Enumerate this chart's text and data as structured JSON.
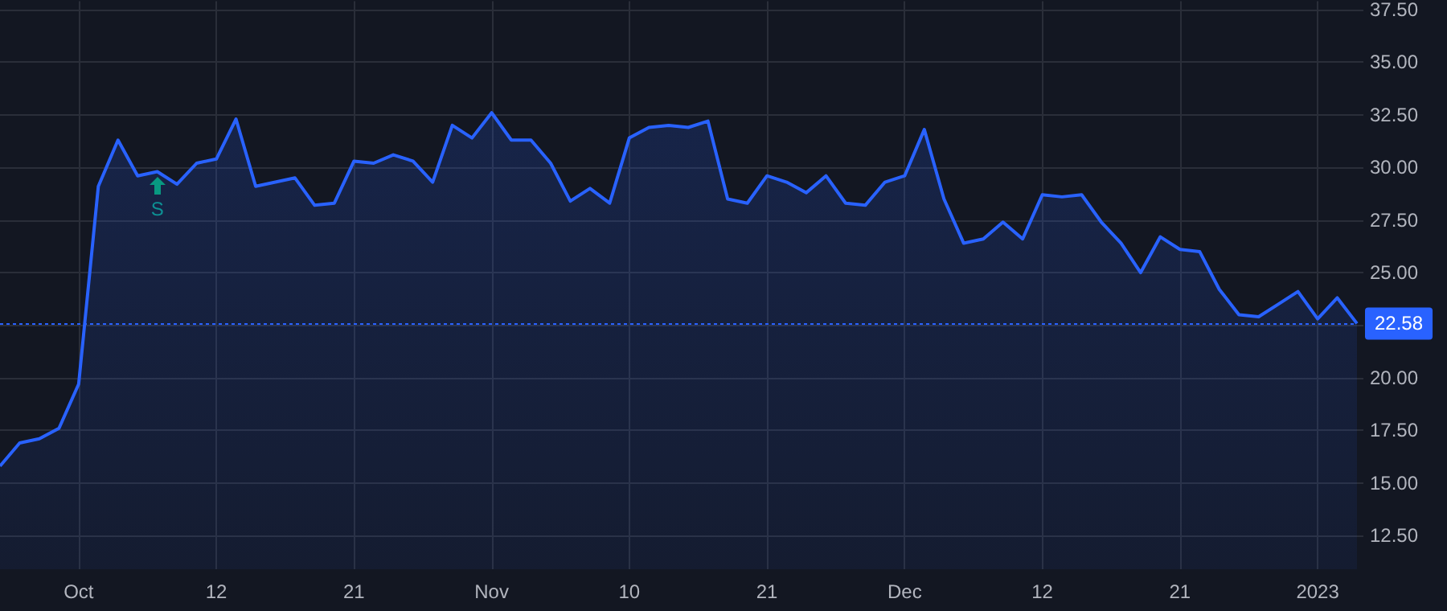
{
  "chart_data": {
    "type": "area",
    "categories": [
      null,
      null,
      null,
      null,
      "Oct",
      null,
      null,
      null,
      null,
      null,
      null,
      "12",
      null,
      null,
      null,
      null,
      null,
      null,
      "21",
      null,
      null,
      null,
      null,
      null,
      null,
      "Nov",
      null,
      null,
      null,
      null,
      null,
      null,
      "10",
      null,
      null,
      null,
      null,
      null,
      null,
      "21",
      null,
      null,
      null,
      null,
      null,
      null,
      "Dec",
      null,
      null,
      null,
      null,
      null,
      null,
      "12",
      null,
      null,
      null,
      null,
      null,
      null,
      "21",
      null,
      null,
      null,
      null,
      null,
      null,
      "2023",
      null,
      null
    ],
    "series": [
      {
        "color": "#2962ff",
        "values": [
          15.8,
          16.9,
          17.1,
          17.6,
          19.7,
          29.1,
          31.3,
          29.6,
          29.8,
          29.2,
          30.2,
          30.4,
          32.3,
          29.1,
          29.3,
          29.5,
          28.2,
          28.3,
          30.3,
          30.2,
          30.6,
          30.3,
          29.3,
          32.0,
          31.4,
          32.6,
          31.3,
          31.3,
          30.2,
          28.4,
          29.0,
          28.3,
          31.4,
          31.9,
          32.0,
          31.9,
          32.2,
          28.5,
          28.3,
          29.6,
          29.3,
          28.8,
          29.6,
          28.3,
          28.2,
          29.3,
          29.6,
          31.8,
          28.5,
          26.4,
          26.6,
          27.4,
          26.6,
          28.7,
          28.6,
          28.7,
          27.4,
          26.4,
          25.0,
          26.7,
          26.1,
          26.0,
          24.2,
          23.0,
          22.9,
          23.5,
          24.1,
          22.8,
          23.8,
          22.58
        ]
      }
    ],
    "ylim": [
      10.9,
      37.9
    ],
    "yticks": [
      {
        "value": 12.5,
        "label": "12.50"
      },
      {
        "value": 15,
        "label": "15.00"
      },
      {
        "value": 17.5,
        "label": "17.50"
      },
      {
        "value": 20,
        "label": "20.00"
      },
      {
        "value": 22.5,
        "label": null
      },
      {
        "value": 25,
        "label": "25.00"
      },
      {
        "value": 27.5,
        "label": "27.50"
      },
      {
        "value": 30,
        "label": "30.00"
      },
      {
        "value": 32.5,
        "label": "32.50"
      },
      {
        "value": 35,
        "label": "35.00"
      },
      {
        "value": 37.5,
        "label": "37.50"
      }
    ],
    "grid": true,
    "ref_lines": [
      {
        "axis": "y",
        "value": 22.58,
        "label": "22.58",
        "color": "#2962ff",
        "line_style": "dotted"
      }
    ],
    "annotations": [
      "S"
    ]
  }
}
